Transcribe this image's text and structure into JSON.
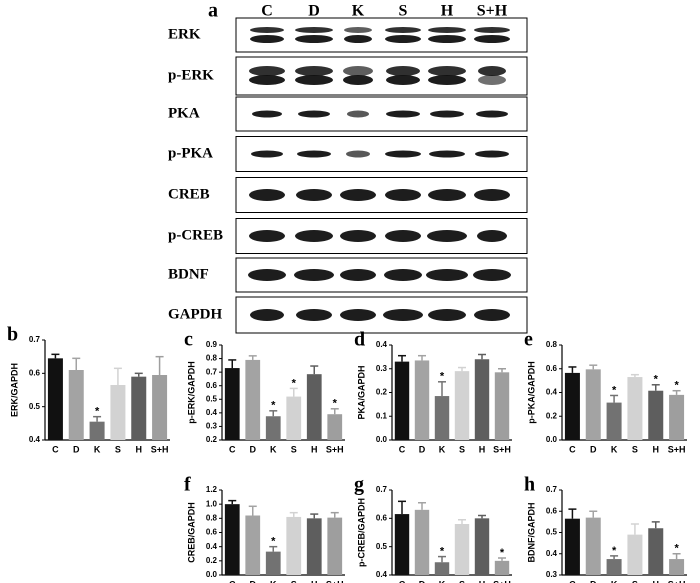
{
  "blot": {
    "panel": "a",
    "lanes": [
      "C",
      "D",
      "K",
      "S",
      "H",
      "S+H"
    ],
    "rows": [
      "ERK",
      "p-ERK",
      "PKA",
      "p-PKA",
      "CREB",
      "p-CREB",
      "BDNF",
      "GAPDH"
    ]
  },
  "chart_data": [
    {
      "type": "bar",
      "panel": "b",
      "ylabel": "ERK/GAPDH",
      "categories": [
        "C",
        "D",
        "K",
        "S",
        "H",
        "S+H"
      ],
      "values": [
        0.645,
        0.61,
        0.455,
        0.565,
        0.59,
        0.595
      ],
      "errors": [
        0.012,
        0.035,
        0.015,
        0.05,
        0.01,
        0.055
      ],
      "markers": [
        null,
        null,
        "*",
        null,
        null,
        null
      ],
      "colors": [
        "#111111",
        "#a3a3a3",
        "#727272",
        "#d2d2d2",
        "#5e5e5e",
        "#9e9e9e"
      ],
      "ylim": [
        0.4,
        0.7
      ],
      "yticks": [
        0.4,
        0.5,
        0.6,
        0.7
      ]
    },
    {
      "type": "bar",
      "panel": "c",
      "ylabel": "p-ERK/GAPDH",
      "categories": [
        "C",
        "D",
        "K",
        "S",
        "H",
        "S+H"
      ],
      "values": [
        0.73,
        0.79,
        0.375,
        0.52,
        0.685,
        0.39
      ],
      "errors": [
        0.06,
        0.03,
        0.04,
        0.06,
        0.06,
        0.04
      ],
      "markers": [
        null,
        null,
        "*",
        "*",
        null,
        "*"
      ],
      "colors": [
        "#111111",
        "#a3a3a3",
        "#727272",
        "#d2d2d2",
        "#5e5e5e",
        "#9e9e9e"
      ],
      "ylim": [
        0.2,
        0.9
      ],
      "yticks": [
        0.2,
        0.3,
        0.4,
        0.5,
        0.6,
        0.7,
        0.8,
        0.9
      ]
    },
    {
      "type": "bar",
      "panel": "d",
      "ylabel": "PKA/GAPDH",
      "categories": [
        "C",
        "D",
        "K",
        "S",
        "H",
        "S+H"
      ],
      "values": [
        0.33,
        0.335,
        0.185,
        0.29,
        0.34,
        0.285
      ],
      "errors": [
        0.025,
        0.02,
        0.06,
        0.015,
        0.02,
        0.015
      ],
      "markers": [
        null,
        null,
        "*",
        null,
        null,
        null
      ],
      "colors": [
        "#111111",
        "#a3a3a3",
        "#727272",
        "#d2d2d2",
        "#5e5e5e",
        "#9e9e9e"
      ],
      "ylim": [
        0,
        0.4
      ],
      "yticks": [
        {
          "value": 0,
          "label": "0.0"
        },
        0.1,
        0.2,
        0.3,
        0.4
      ]
    },
    {
      "type": "bar",
      "panel": "e",
      "ylabel": "p-PKA/GAPDH",
      "categories": [
        "C",
        "D",
        "K",
        "S",
        "H",
        "S+H"
      ],
      "values": [
        0.565,
        0.595,
        0.315,
        0.53,
        0.415,
        0.38
      ],
      "errors": [
        0.05,
        0.035,
        0.06,
        0.02,
        0.05,
        0.035
      ],
      "markers": [
        null,
        null,
        "*",
        null,
        "*",
        "*"
      ],
      "colors": [
        "#111111",
        "#a3a3a3",
        "#727272",
        "#d2d2d2",
        "#5e5e5e",
        "#9e9e9e"
      ],
      "ylim": [
        0,
        0.8
      ],
      "yticks": [
        {
          "value": 0,
          "label": "0.0"
        },
        0.2,
        0.4,
        0.6,
        0.8
      ]
    },
    {
      "type": "bar",
      "panel": "f",
      "ylabel": "CREB/GAPDH",
      "categories": [
        "C",
        "D",
        "K",
        "S",
        "H",
        "S+H"
      ],
      "values": [
        1.0,
        0.84,
        0.33,
        0.82,
        0.8,
        0.81
      ],
      "errors": [
        0.05,
        0.13,
        0.07,
        0.06,
        0.06,
        0.07
      ],
      "markers": [
        null,
        null,
        "*",
        null,
        null,
        null
      ],
      "colors": [
        "#111111",
        "#a3a3a3",
        "#727272",
        "#d2d2d2",
        "#5e5e5e",
        "#9e9e9e"
      ],
      "ylim": [
        0,
        1.2
      ],
      "yticks": [
        {
          "value": 0,
          "label": "0.0"
        },
        0.2,
        0.4,
        0.6,
        0.8,
        {
          "value": 1,
          "label": "1.0"
        },
        1.2
      ]
    },
    {
      "type": "bar",
      "panel": "g",
      "ylabel": "p-CREB/GAPDH",
      "categories": [
        "C",
        "D",
        "K",
        "S",
        "H",
        "S+H"
      ],
      "values": [
        0.615,
        0.63,
        0.445,
        0.58,
        0.6,
        0.45
      ],
      "errors": [
        0.045,
        0.025,
        0.02,
        0.015,
        0.01,
        0.01
      ],
      "markers": [
        null,
        null,
        "*",
        null,
        null,
        "*"
      ],
      "colors": [
        "#111111",
        "#a3a3a3",
        "#727272",
        "#d2d2d2",
        "#5e5e5e",
        "#9e9e9e"
      ],
      "ylim": [
        0.4,
        0.7
      ],
      "yticks": [
        0.4,
        0.5,
        0.6,
        0.7
      ]
    },
    {
      "type": "bar",
      "panel": "h",
      "ylabel": "BDNF/GAPDH",
      "categories": [
        "C",
        "D",
        "K",
        "S",
        "H",
        "S+H"
      ],
      "values": [
        0.565,
        0.57,
        0.375,
        0.49,
        0.52,
        0.375
      ],
      "errors": [
        0.045,
        0.03,
        0.015,
        0.05,
        0.03,
        0.025
      ],
      "markers": [
        null,
        null,
        "*",
        null,
        null,
        "*"
      ],
      "colors": [
        "#111111",
        "#a3a3a3",
        "#727272",
        "#d2d2d2",
        "#5e5e5e",
        "#9e9e9e"
      ],
      "ylim": [
        0.3,
        0.7
      ],
      "yticks": [
        0.3,
        0.4,
        0.5,
        0.6,
        0.7
      ]
    }
  ]
}
